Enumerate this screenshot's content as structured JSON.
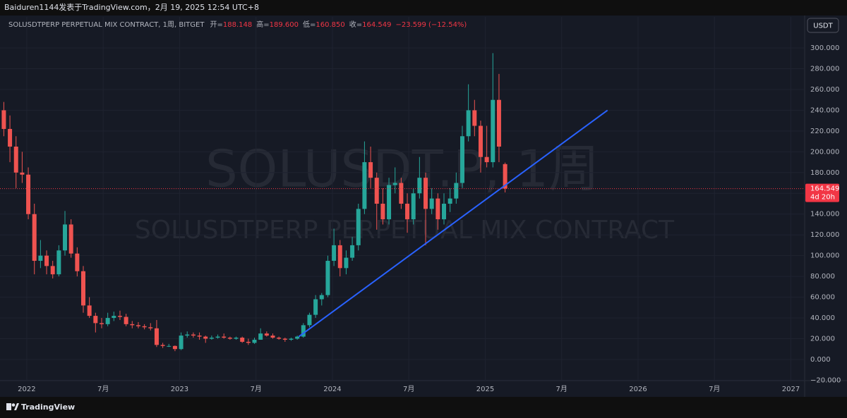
{
  "publisher": "Baiduren1144发表于TradingView.com，2月 19, 2025 12:54 UTC+8",
  "header": {
    "title": "SOLUSDTPERP PERPETUAL MIX CONTRACT, 1周, BITGET",
    "open_label": "开=",
    "open": "188.148",
    "high_label": "高=",
    "high": "189.600",
    "low_label": "低=",
    "low": "160.850",
    "close_label": "收=",
    "close": "164.549",
    "change": "−23.599 (−12.54%)"
  },
  "currency": "USDT",
  "brand": "TradingView",
  "chart_data": {
    "type": "candlestick",
    "watermark": "SOLUSDT.P, 1周",
    "watermark_sub": "SOLUSDTPERP PERPETUAL MIX CONTRACT",
    "up_color": "#26a69a",
    "down_color": "#ef5350",
    "grid": true,
    "xlim": [
      2021.825,
      2027.09
    ],
    "ylim": [
      -20.4,
      329.9
    ],
    "xticks": [
      {
        "value": 2022,
        "label": "2022"
      },
      {
        "value": 2022.5,
        "label": "7月"
      },
      {
        "value": 2023,
        "label": "2023"
      },
      {
        "value": 2023.5,
        "label": "7月"
      },
      {
        "value": 2024,
        "label": "2024"
      },
      {
        "value": 2024.5,
        "label": "7月"
      },
      {
        "value": 2025,
        "label": "2025"
      },
      {
        "value": 2025.5,
        "label": "7月"
      },
      {
        "value": 2026,
        "label": "2026"
      },
      {
        "value": 2026.5,
        "label": "7月"
      },
      {
        "value": 2027,
        "label": "2027"
      }
    ],
    "yticks": [
      {
        "value": -20,
        "label": "−20.000"
      },
      {
        "value": 0,
        "label": "0.000"
      },
      {
        "value": 20,
        "label": "20.000"
      },
      {
        "value": 40,
        "label": "40.000"
      },
      {
        "value": 60,
        "label": "60.000"
      },
      {
        "value": 80,
        "label": "80.000"
      },
      {
        "value": 100,
        "label": "100.000"
      },
      {
        "value": 120,
        "label": "120.000"
      },
      {
        "value": 140,
        "label": "140.000"
      },
      {
        "value": 160,
        "label": "160.000"
      },
      {
        "value": 180,
        "label": "180.000"
      },
      {
        "value": 200,
        "label": "200.000"
      },
      {
        "value": 220,
        "label": "220.000"
      },
      {
        "value": 240,
        "label": "240.000"
      },
      {
        "value": 260,
        "label": "260.000"
      },
      {
        "value": 280,
        "label": "280.000"
      },
      {
        "value": 300,
        "label": "300.000"
      }
    ],
    "x": [
      2021.85,
      2021.89,
      2021.93,
      2021.97,
      2022.01,
      2022.05,
      2022.09,
      2022.13,
      2022.17,
      2022.21,
      2022.25,
      2022.29,
      2022.33,
      2022.37,
      2022.41,
      2022.45,
      2022.49,
      2022.53,
      2022.57,
      2022.61,
      2022.65,
      2022.69,
      2022.73,
      2022.77,
      2022.81,
      2022.85,
      2022.89,
      2022.93,
      2022.97,
      2023.01,
      2023.05,
      2023.09,
      2023.13,
      2023.17,
      2023.21,
      2023.25,
      2023.29,
      2023.33,
      2023.37,
      2023.41,
      2023.45,
      2023.49,
      2023.53,
      2023.57,
      2023.61,
      2023.65,
      2023.69,
      2023.73,
      2023.77,
      2023.81,
      2023.85,
      2023.89,
      2023.93,
      2023.97,
      2024.01,
      2024.05,
      2024.09,
      2024.13,
      2024.17,
      2024.21,
      2024.25,
      2024.29,
      2024.33,
      2024.37,
      2024.41,
      2024.45,
      2024.49,
      2024.53,
      2024.57,
      2024.61,
      2024.65,
      2024.69,
      2024.73,
      2024.77,
      2024.81,
      2024.85,
      2024.89,
      2024.93,
      2024.97,
      2025.01,
      2025.05,
      2025.09,
      2025.13
    ],
    "open": [
      240,
      222,
      205,
      180,
      178,
      140,
      95,
      100,
      90,
      82,
      105,
      130,
      102,
      85,
      52,
      42,
      35,
      34,
      40,
      42,
      41,
      34,
      33,
      32,
      31,
      30,
      14,
      13,
      13,
      10,
      23,
      24,
      23,
      22,
      20,
      21,
      22,
      21,
      20,
      21,
      17,
      16,
      19,
      25,
      23,
      21,
      20,
      19,
      20,
      22,
      33,
      43,
      58,
      62,
      95,
      110,
      88,
      98,
      110,
      145,
      190,
      175,
      150,
      135,
      168,
      170,
      150,
      135,
      160,
      175,
      145,
      155,
      135,
      150,
      155,
      170,
      215,
      240,
      225,
      195,
      190,
      250,
      188.148
    ],
    "high": [
      248,
      235,
      215,
      200,
      185,
      150,
      115,
      105,
      95,
      110,
      143,
      135,
      108,
      90,
      60,
      45,
      40,
      45,
      46,
      47,
      44,
      37,
      36,
      34,
      35,
      38,
      16,
      15,
      13.5,
      26,
      27,
      26,
      26,
      23,
      23,
      24,
      25,
      22,
      22,
      22,
      20,
      21,
      30,
      27,
      25,
      22,
      21,
      21,
      23,
      35,
      45,
      62,
      64,
      100,
      126,
      115,
      105,
      118,
      150,
      210,
      205,
      180,
      165,
      175,
      185,
      175,
      160,
      165,
      195,
      180,
      165,
      160,
      160,
      165,
      180,
      225,
      265,
      250,
      230,
      225,
      295,
      275,
      189.6
    ],
    "low": [
      215,
      190,
      165,
      170,
      135,
      82,
      88,
      82,
      78,
      80,
      100,
      98,
      80,
      45,
      40,
      26,
      30,
      32,
      37,
      38,
      32,
      30,
      30,
      29,
      28,
      12,
      11,
      12,
      8,
      9,
      21,
      21,
      19,
      16,
      19,
      20,
      20,
      19,
      19,
      16,
      14,
      15,
      19,
      22,
      20,
      19,
      17,
      18,
      19,
      21,
      31,
      40,
      52,
      60,
      90,
      80,
      82,
      95,
      105,
      140,
      165,
      125,
      130,
      130,
      160,
      145,
      122,
      130,
      155,
      110,
      140,
      125,
      130,
      142,
      150,
      165,
      210,
      215,
      180,
      185,
      185,
      190,
      160.85
    ],
    "close": [
      222,
      205,
      180,
      178,
      140,
      95,
      100,
      90,
      82,
      105,
      130,
      102,
      85,
      52,
      42,
      35,
      34,
      40,
      42,
      41,
      34,
      33,
      32,
      31,
      30,
      14,
      13,
      13,
      10,
      23,
      24,
      23,
      22,
      20,
      21,
      22,
      21,
      20,
      21,
      17,
      16,
      19,
      25,
      23,
      21,
      20,
      19,
      20,
      22,
      33,
      43,
      58,
      62,
      95,
      110,
      88,
      98,
      110,
      145,
      190,
      175,
      150,
      135,
      168,
      170,
      150,
      135,
      160,
      175,
      145,
      155,
      135,
      150,
      155,
      170,
      215,
      240,
      225,
      195,
      190,
      250,
      205,
      164.549
    ],
    "trendline": {
      "x": [
        2023.78,
        2025.8
      ],
      "y": [
        22,
        240
      ],
      "color": "#2962ff"
    },
    "price_line": {
      "value": 164.549,
      "label": "164.549",
      "countdown": "4d 20h",
      "color": "#f23645"
    }
  }
}
